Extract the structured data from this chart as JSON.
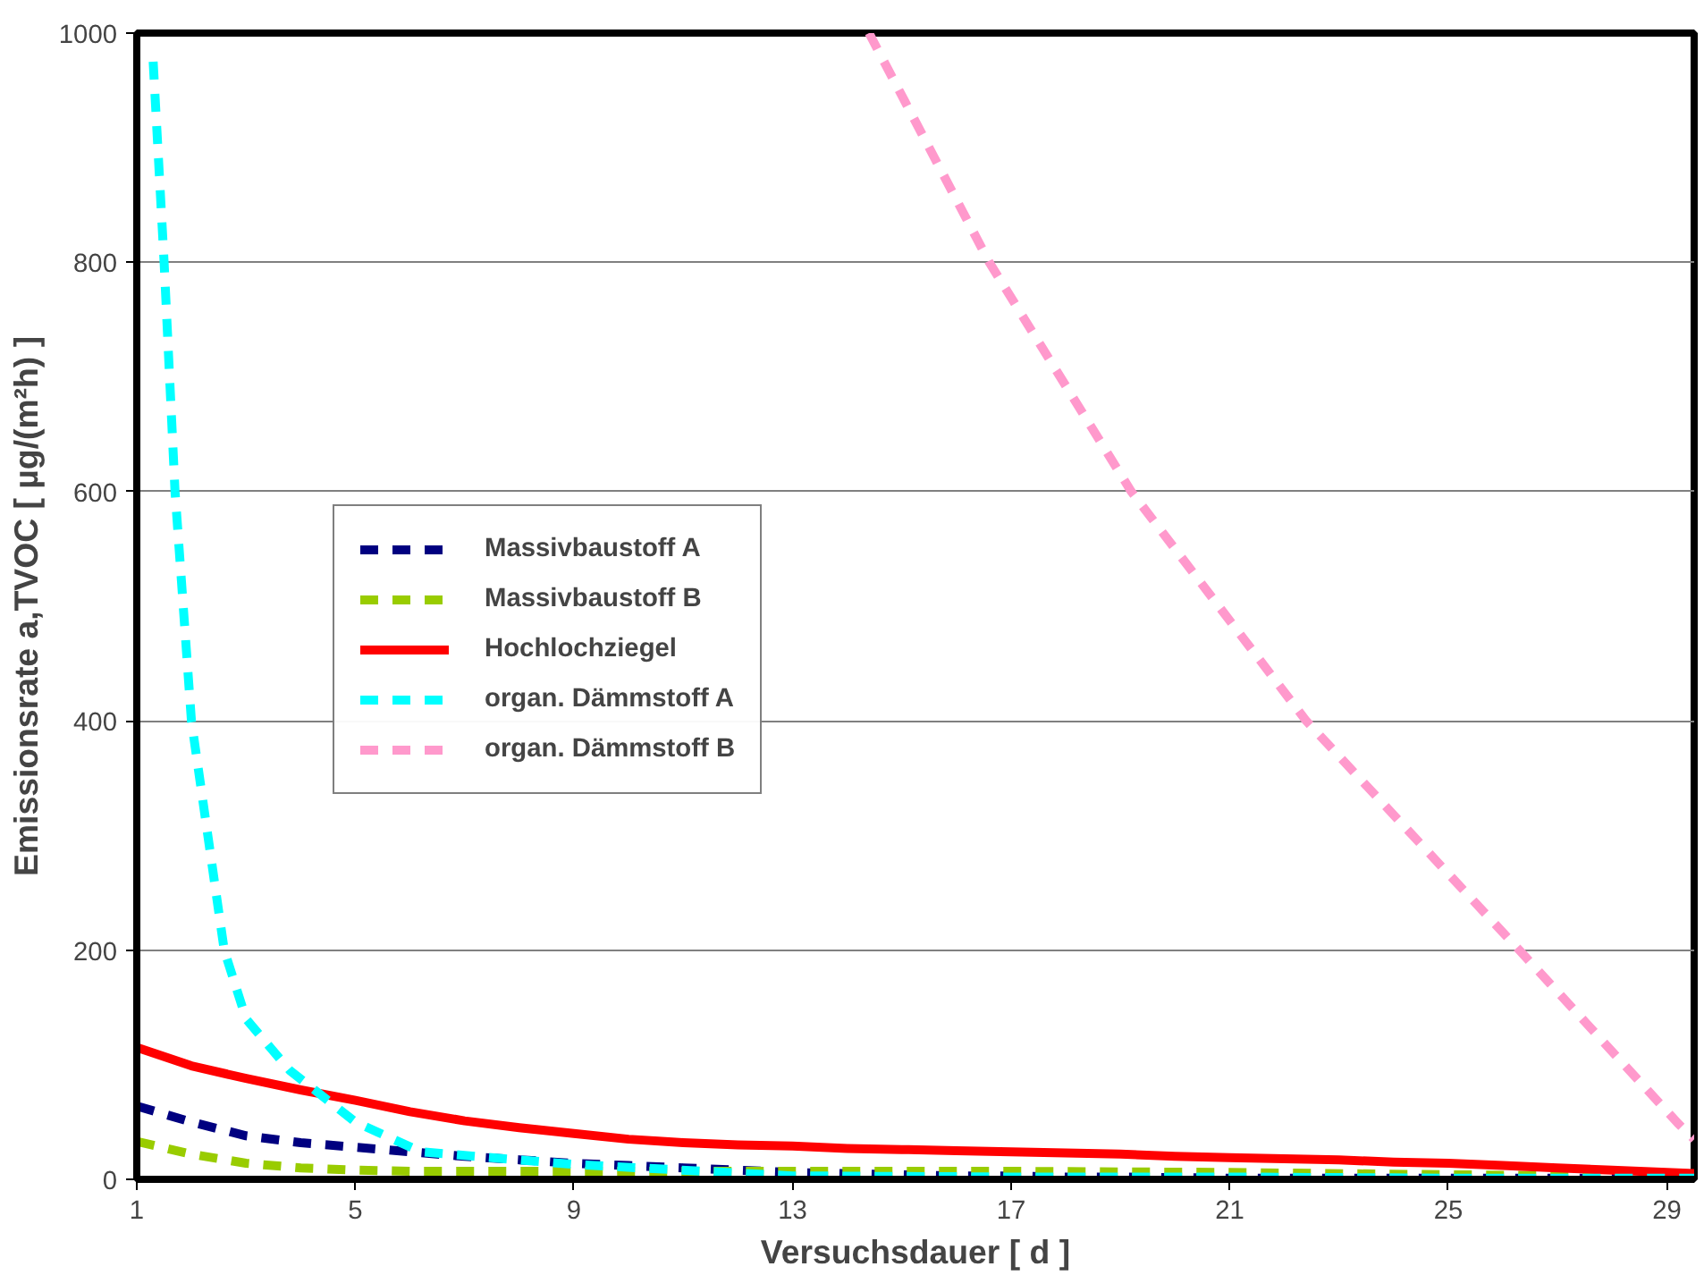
{
  "chart_data": {
    "type": "line",
    "xlabel": "Versuchsdauer [ d ]",
    "ylabel": "Emissionsrate a,TVOC [ µg/(m²h) ]",
    "xlim": [
      1,
      29.5
    ],
    "xticks": [
      1,
      5,
      9,
      13,
      17,
      21,
      25,
      29
    ],
    "ylim": [
      0,
      1000
    ],
    "yticks": [
      0,
      200,
      400,
      600,
      800,
      1000
    ],
    "grid": "y",
    "legend": "center left",
    "marker": "none",
    "series": [
      {
        "name": "Massivbaustoff A",
        "color": "#000080",
        "line_style": "dashed",
        "x": [
          1,
          2,
          3,
          4,
          5,
          6,
          7,
          8,
          9,
          10,
          11,
          12,
          13,
          14,
          15,
          16,
          17,
          18,
          19,
          21,
          25,
          29.5
        ],
        "values": [
          64,
          50,
          38,
          32,
          28,
          24,
          20,
          17,
          14,
          12,
          10,
          8,
          6,
          5,
          4,
          3,
          3,
          2,
          2,
          1,
          1,
          1
        ]
      },
      {
        "name": "Massivbaustoff B",
        "color": "#99cc00",
        "line_style": "dashed",
        "x": [
          1,
          2,
          3,
          4,
          5,
          6,
          9,
          13,
          17,
          21,
          25,
          29.5
        ],
        "values": [
          33,
          22,
          14,
          10,
          8,
          7,
          7,
          7,
          7,
          6,
          4,
          2
        ]
      },
      {
        "name": "Hochlochziegel",
        "color": "#ff0000",
        "line_style": "solid",
        "x": [
          1,
          2,
          3,
          4,
          5,
          6,
          7,
          8,
          9,
          10,
          11,
          12,
          13,
          14,
          15,
          16,
          17,
          18,
          19,
          20,
          21,
          22,
          23,
          24,
          25,
          26,
          27,
          28,
          29,
          29.5
        ],
        "values": [
          115,
          99,
          88,
          78,
          69,
          59,
          51,
          45,
          40,
          35,
          32,
          30,
          29,
          27,
          26,
          25,
          24,
          23,
          22,
          20,
          19,
          18,
          17,
          15,
          14,
          12,
          10,
          8,
          6,
          5
        ]
      },
      {
        "name": "organ. Dämmstoff A",
        "color": "#00ffff",
        "line_style": "dashed",
        "x": [
          1.3,
          1.5,
          1.7,
          2,
          2.6,
          3,
          3.8,
          5,
          6.2,
          9,
          13,
          17,
          21,
          25,
          29.5
        ],
        "values": [
          975,
          800,
          600,
          400,
          200,
          140,
          95,
          50,
          24,
          13,
          3,
          2,
          2,
          1,
          1
        ]
      },
      {
        "name": "organ. Dämmstoff B",
        "color": "#ff99cc",
        "line_style": "dashed",
        "x": [
          14.4,
          16.6,
          19.2,
          22.4,
          26.3,
          29.2,
          29.5
        ],
        "values": [
          1000,
          800,
          600,
          400,
          200,
          49,
          35
        ]
      }
    ]
  }
}
